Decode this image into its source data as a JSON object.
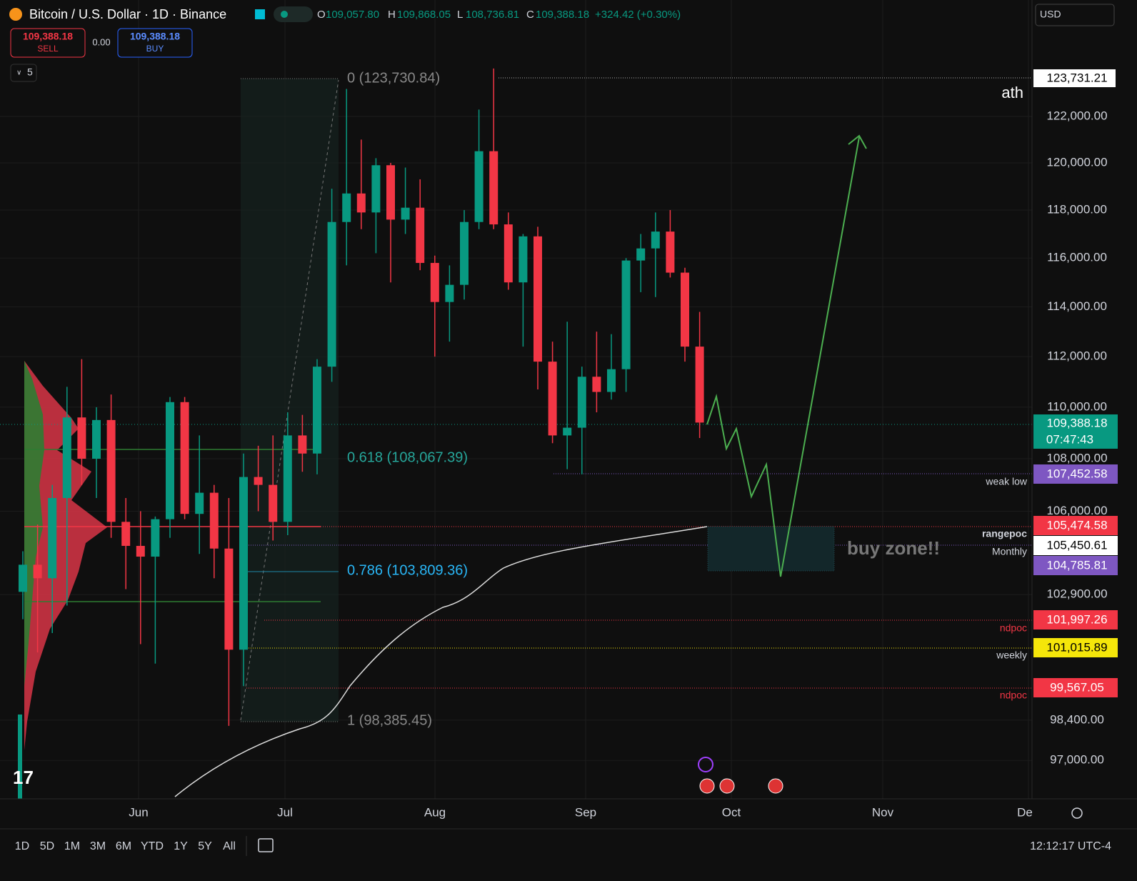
{
  "header": {
    "symbol": "Bitcoin / U.S. Dollar · 1D · Binance",
    "o_label": "O",
    "open": "109,057.80",
    "h_label": "H",
    "high": "109,868.05",
    "l_label": "L",
    "low": "108,736.81",
    "c_label": "C",
    "close": "109,388.18",
    "change": "+324.42 (+0.30%)"
  },
  "trade": {
    "sell_price": "109,388.18",
    "sell": "SELL",
    "spread": "0.00",
    "buy_price": "109,388.18",
    "buy": "BUY",
    "indicators": "5"
  },
  "currency": "USD",
  "price_axis": {
    "log": true,
    "ticks": [
      {
        "value": 122000,
        "label": "122,000.00"
      },
      {
        "value": 120000,
        "label": "120,000.00"
      },
      {
        "value": 118000,
        "label": "118,000.00"
      },
      {
        "value": 116000,
        "label": "116,000.00"
      },
      {
        "value": 114000,
        "label": "114,000.00"
      },
      {
        "value": 112000,
        "label": "112,000.00"
      },
      {
        "value": 110000,
        "label": "110,000.00"
      },
      {
        "value": 108000,
        "label": "108,000.00"
      },
      {
        "value": 106000,
        "label": "106,000.00"
      },
      {
        "value": 102900,
        "label": "102,900.00"
      },
      {
        "value": 98400,
        "label": "98,400.00"
      },
      {
        "value": 97000,
        "label": "97,000.00"
      }
    ]
  },
  "time_axis": {
    "labels": [
      "Jun",
      "Jul",
      "Aug",
      "Sep",
      "Oct",
      "Nov",
      "De"
    ]
  },
  "candles": [
    [
      103000,
      104500,
      102000,
      104000
    ],
    [
      104000,
      105500,
      100800,
      103500
    ],
    [
      103500,
      107000,
      101500,
      106500
    ],
    [
      106500,
      110800,
      102500,
      109600
    ],
    [
      109600,
      111900,
      107000,
      108000
    ],
    [
      108000,
      110000,
      106500,
      109500
    ],
    [
      109500,
      110500,
      105000,
      105600
    ],
    [
      105600,
      106500,
      103100,
      104700
    ],
    [
      104700,
      106000,
      101100,
      104300
    ],
    [
      104300,
      105800,
      100400,
      105700
    ],
    [
      105700,
      110400,
      105000,
      110200
    ],
    [
      110200,
      110400,
      105700,
      105900
    ],
    [
      105900,
      108900,
      104400,
      106700
    ],
    [
      106700,
      107000,
      103500,
      104600
    ],
    [
      104600,
      106500,
      98200,
      100900
    ],
    [
      100900,
      108200,
      99600,
      107300
    ],
    [
      107300,
      108500,
      106000,
      107000
    ],
    [
      107000,
      108900,
      104900,
      105600
    ],
    [
      105600,
      109800,
      105100,
      108900
    ],
    [
      108900,
      109700,
      107500,
      108200
    ],
    [
      108200,
      111900,
      107400,
      111600
    ],
    [
      111600,
      118900,
      111000,
      117500
    ],
    [
      117500,
      123200,
      115700,
      118700
    ],
    [
      118700,
      121000,
      117200,
      117900
    ],
    [
      117900,
      120200,
      116200,
      119900
    ],
    [
      119900,
      120000,
      115000,
      117600
    ],
    [
      117600,
      119800,
      117000,
      118100
    ],
    [
      118100,
      119300,
      115500,
      115800
    ],
    [
      115800,
      116100,
      112000,
      114200
    ],
    [
      114200,
      115700,
      112600,
      114900
    ],
    [
      114900,
      118000,
      114300,
      117500
    ],
    [
      117500,
      122300,
      117200,
      120500
    ],
    [
      120500,
      124100,
      117200,
      117400
    ],
    [
      117400,
      117900,
      114700,
      115000
    ],
    [
      115000,
      117000,
      112400,
      116900
    ],
    [
      116900,
      117300,
      110700,
      111800
    ],
    [
      111800,
      112600,
      108600,
      108900
    ],
    [
      108900,
      113400,
      107600,
      109200
    ],
    [
      109200,
      111600,
      107400,
      111200
    ],
    [
      111200,
      113000,
      109800,
      110600
    ],
    [
      110600,
      112900,
      110300,
      111500
    ],
    [
      111500,
      116000,
      110600,
      115900
    ],
    [
      115900,
      117000,
      114600,
      116400
    ],
    [
      116400,
      117900,
      114400,
      117100
    ],
    [
      117100,
      118000,
      115200,
      115400
    ],
    [
      115400,
      115600,
      111800,
      112400
    ],
    [
      112400,
      113800,
      108800,
      109400
    ]
  ],
  "fib": [
    "0 (123,730.84)",
    "0.618 (108,067.39)",
    "0.786 (103,809.36)",
    "1 (98,385.45)"
  ],
  "price_labels": {
    "ath": "123,731.21",
    "last": "109,388.18",
    "countdown": "07:47:43",
    "weak_low": "107,452.58",
    "rangepoc": "105,474.58",
    "monthly": "105,450.61",
    "lower": "104,785.81",
    "ndpoc1": "101,997.26",
    "weekly": "101,015.89",
    "ndpoc2": "99,567.05"
  },
  "annotations": {
    "ath": "ath",
    "weak_low": "weak low",
    "rangepoc": "rangepoc",
    "monthly": "Monthly",
    "ndpoc1": "ndpoc",
    "weekly": "weekly",
    "ndpoc2": "ndpoc",
    "buy_zone": "buy zone!!"
  },
  "toolbar": {
    "ranges": [
      "1D",
      "5D",
      "1M",
      "3M",
      "6M",
      "YTD",
      "1Y",
      "5Y",
      "All"
    ],
    "time": "12:12:17 UTC-4"
  }
}
